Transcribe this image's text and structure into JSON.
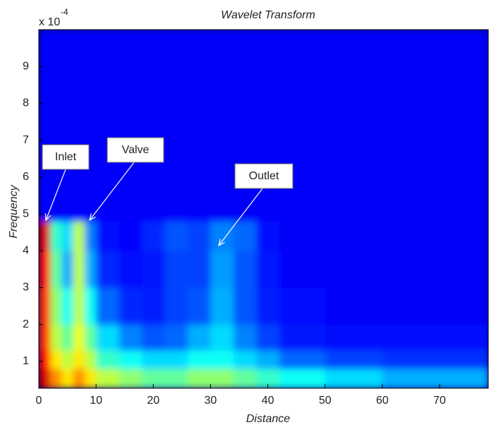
{
  "chart_data": {
    "type": "heatmap",
    "title": "Wavelet Transform",
    "x_label": "Distance",
    "y_label": "Frequency",
    "y_multiplier": "x 10",
    "y_exponent": "-4",
    "xlim": [
      0,
      78.5
    ],
    "ylim": [
      0.27,
      10
    ],
    "xticks": [
      0,
      10,
      20,
      30,
      40,
      50,
      60,
      70
    ],
    "yticks": [
      1,
      2,
      3,
      4,
      5,
      6,
      7,
      8,
      9
    ],
    "x_edges": [
      0,
      2,
      4,
      6,
      8,
      10,
      14,
      18,
      22,
      26,
      30,
      34,
      38,
      42,
      50,
      60,
      70,
      78.5
    ],
    "y_edges": [
      0.27,
      0.8,
      1.3,
      2,
      3,
      4,
      4.8,
      10
    ],
    "z": [
      [
        0.9,
        0.7,
        0.6,
        0.7,
        0.6,
        0.5,
        0.45,
        0.4,
        0.4,
        0.45,
        0.45,
        0.4,
        0.35,
        0.3,
        0.25,
        0.2,
        0.2
      ],
      [
        0.85,
        0.6,
        0.5,
        0.6,
        0.5,
        0.35,
        0.3,
        0.25,
        0.25,
        0.3,
        0.3,
        0.25,
        0.2,
        0.12,
        0.08,
        0.06,
        0.06
      ],
      [
        0.8,
        0.5,
        0.4,
        0.55,
        0.4,
        0.25,
        0.15,
        0.1,
        0.12,
        0.2,
        0.25,
        0.15,
        0.08,
        0.03,
        0.02,
        0.02,
        0.02
      ],
      [
        0.8,
        0.45,
        0.3,
        0.5,
        0.3,
        0.12,
        0.05,
        0.04,
        0.08,
        0.1,
        0.2,
        0.1,
        0.04,
        0.02,
        0,
        0,
        0
      ],
      [
        0.85,
        0.4,
        0.2,
        0.5,
        0.2,
        0.05,
        0.02,
        0.03,
        0.08,
        0.08,
        0.18,
        0.1,
        0.03,
        0,
        0,
        0,
        0
      ],
      [
        0.9,
        0.35,
        0.25,
        0.5,
        0.15,
        0.02,
        0.01,
        0.05,
        0.1,
        0.08,
        0.15,
        0.12,
        0.02,
        0,
        0,
        0,
        0
      ],
      [
        0,
        0,
        0,
        0,
        0,
        0,
        0,
        0,
        0,
        0,
        0,
        0,
        0,
        0,
        0,
        0,
        0
      ]
    ],
    "annotations": [
      "Inlet",
      "Valve",
      "Outlet"
    ]
  }
}
